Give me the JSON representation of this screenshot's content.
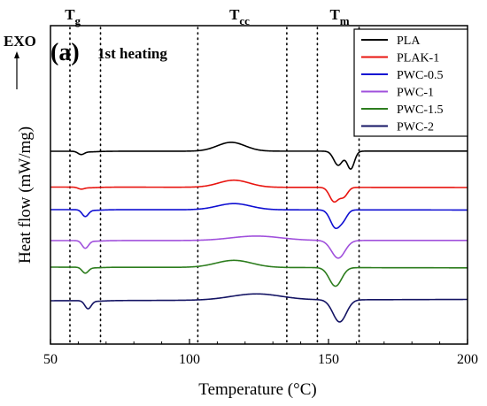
{
  "chart_data": {
    "type": "line",
    "panel_label": "(a)",
    "title": "1st heating",
    "exo_label": "EXO",
    "xlabel": "Temperature (°C)",
    "ylabel": "Heat flow (mW/mg)",
    "xlim": [
      50,
      200
    ],
    "xticks": [
      50,
      100,
      150,
      200
    ],
    "y_ticks_shown": false,
    "grid": false,
    "legend_position": "top-right",
    "transition_labels": [
      {
        "base": "T",
        "sub": "g",
        "x": 58
      },
      {
        "base": "T",
        "sub": "cc",
        "x": 118
      },
      {
        "base": "T",
        "sub": "m",
        "x": 154
      }
    ],
    "reference_lines_x": [
      57,
      68,
      103,
      135,
      146,
      161
    ],
    "series": [
      {
        "name": "PLA",
        "color": "#000000",
        "baseline": 0.0,
        "drift": 0.2,
        "features": [
          {
            "kind": "tg",
            "center": 61,
            "depth": 3.5,
            "width": 1.6
          },
          {
            "kind": "cc",
            "center": 115,
            "height": 10,
            "width": 5
          },
          {
            "kind": "melt",
            "center": 153.5,
            "depth": 16,
            "width": 1.6
          },
          {
            "kind": "melt",
            "center": 158,
            "depth": 20,
            "width": 1.3
          }
        ]
      },
      {
        "name": "PLAK-1",
        "color": "#e8140f",
        "baseline": -40.5,
        "drift": -0.5,
        "features": [
          {
            "kind": "tg",
            "center": 61,
            "depth": 2,
            "width": 1.6
          },
          {
            "kind": "cc",
            "center": 116,
            "height": 8,
            "width": 5.5
          },
          {
            "kind": "melt",
            "center": 152,
            "depth": 16,
            "width": 1.6
          },
          {
            "kind": "melt",
            "center": 155.5,
            "depth": 10,
            "width": 1.4
          }
        ]
      },
      {
        "name": "PWC-0.5",
        "color": "#0f0fd2",
        "baseline": -66,
        "drift": -0.4,
        "features": [
          {
            "kind": "tg",
            "center": 62.5,
            "depth": 7.5,
            "width": 1.6
          },
          {
            "kind": "cc",
            "center": 116,
            "height": 7,
            "width": 6
          },
          {
            "kind": "melt",
            "center": 152.5,
            "depth": 20,
            "width": 1.8
          },
          {
            "kind": "melt",
            "center": 155.5,
            "depth": 8,
            "width": 1.4
          }
        ]
      },
      {
        "name": "PWC-1",
        "color": "#a050dc",
        "baseline": -101,
        "drift": 0.2,
        "features": [
          {
            "kind": "tg",
            "center": 62.5,
            "depth": 8.5,
            "width": 1.6
          },
          {
            "kind": "cc",
            "center": 124,
            "height": 5,
            "width": 9
          },
          {
            "kind": "melt",
            "center": 153.5,
            "depth": 20,
            "width": 2.4
          }
        ]
      },
      {
        "name": "PWC-1.5",
        "color": "#2d7d1e",
        "baseline": -131,
        "drift": -0.8,
        "features": [
          {
            "kind": "tg",
            "center": 62.5,
            "depth": 6.5,
            "width": 1.6
          },
          {
            "kind": "cc",
            "center": 116,
            "height": 8,
            "width": 6.5
          },
          {
            "kind": "melt",
            "center": 152.5,
            "depth": 21,
            "width": 2.2
          }
        ]
      },
      {
        "name": "PWC-2",
        "color": "#141464",
        "baseline": -169,
        "drift": 1.5,
        "features": [
          {
            "kind": "tg",
            "center": 63.5,
            "depth": 9,
            "width": 1.6
          },
          {
            "kind": "cc",
            "center": 124,
            "height": 7,
            "width": 9
          },
          {
            "kind": "melt",
            "center": 154,
            "depth": 25,
            "width": 2.4
          }
        ]
      }
    ]
  }
}
